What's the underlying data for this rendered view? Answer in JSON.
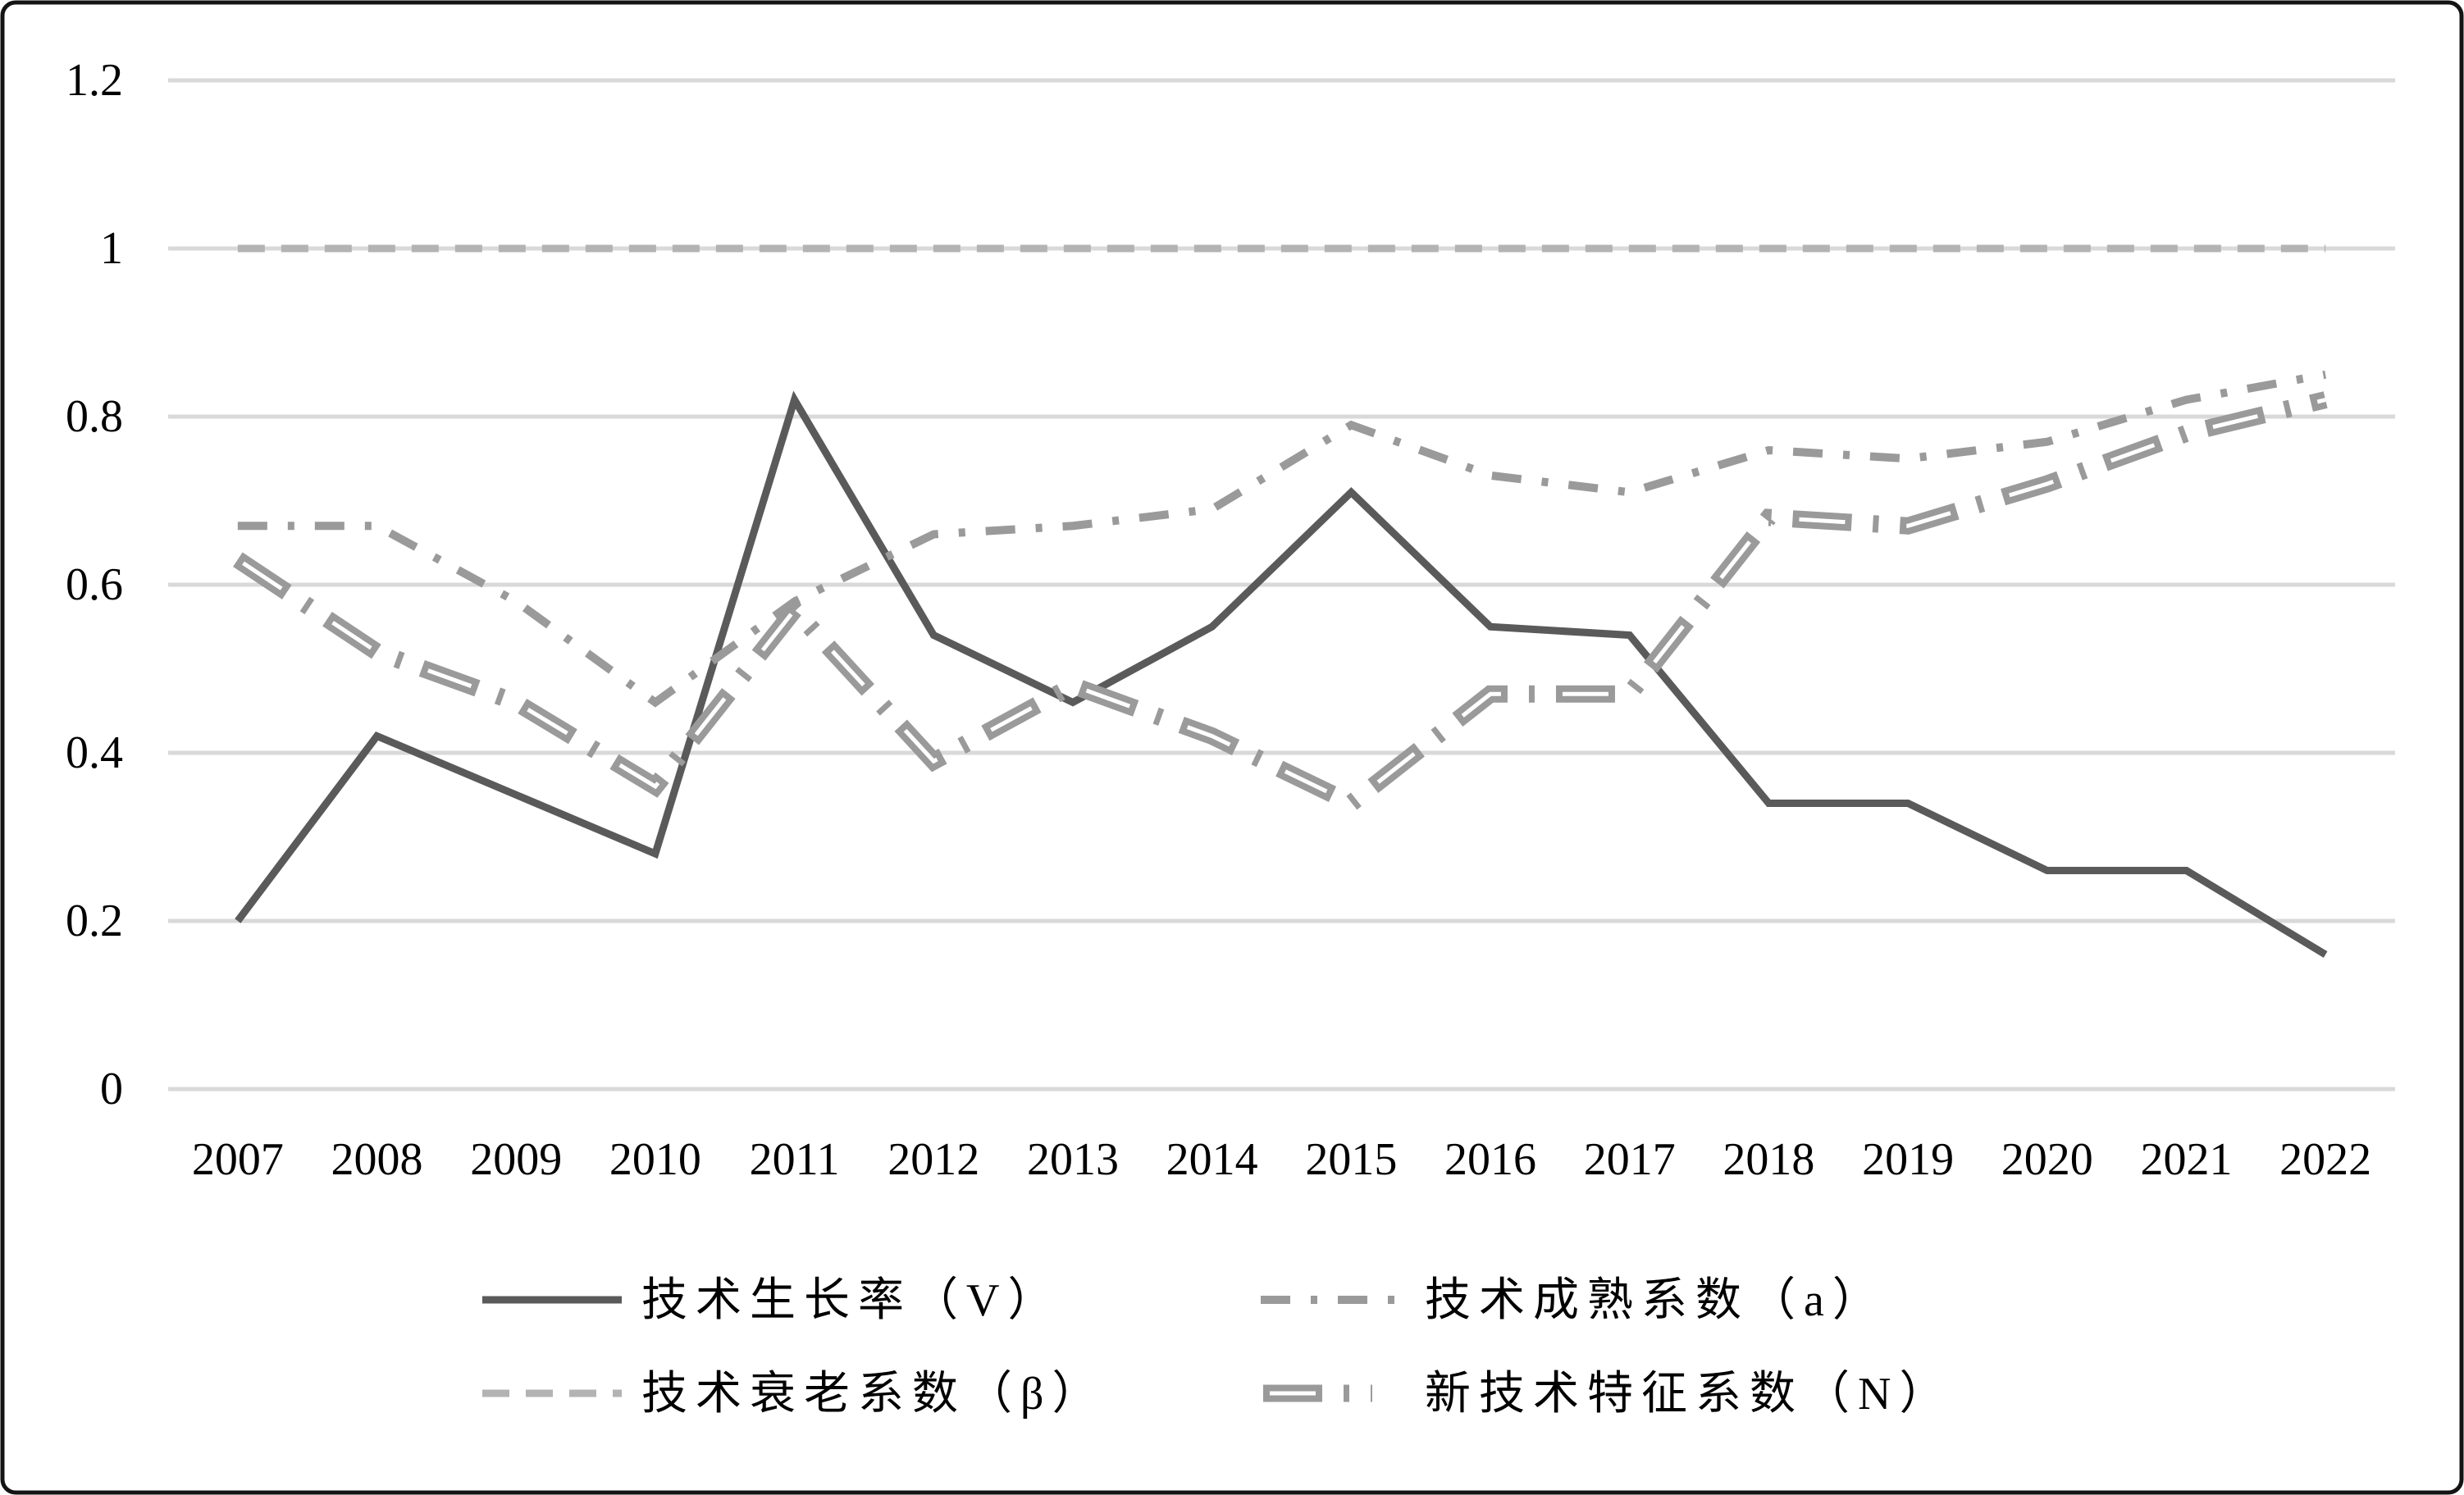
{
  "chart_data": {
    "type": "line",
    "title": "",
    "xlabel": "",
    "ylabel": "",
    "ylim": [
      0,
      1.2
    ],
    "grid": "horizontal",
    "legend_position": "bottom",
    "x_labels": [
      "2007",
      "2008",
      "2009",
      "2010",
      "2011",
      "2012",
      "2013",
      "2014",
      "2015",
      "2016",
      "2017",
      "2018",
      "2019",
      "2020",
      "2021",
      "2022"
    ],
    "y_ticks": {
      "values": [
        0,
        0.2,
        0.4,
        0.6,
        0.8,
        1,
        1.2
      ],
      "labels": [
        "0",
        "0.2",
        "0.4",
        "0.6",
        "0.8",
        "1",
        "1.2"
      ]
    },
    "series": [
      {
        "name": "技术生长率（V）",
        "style": "solid",
        "color": "#5a5a5a",
        "width": 9,
        "values": [
          0.2,
          0.42,
          0.35,
          0.28,
          0.82,
          0.54,
          0.46,
          0.55,
          0.71,
          0.55,
          0.54,
          0.34,
          0.34,
          0.26,
          0.26,
          0.16
        ]
      },
      {
        "name": "技术成熟系数（a）",
        "style": "dashdot",
        "color": "#9a9a9a",
        "width": 10,
        "values": [
          0.67,
          0.67,
          0.58,
          0.46,
          0.58,
          0.66,
          0.67,
          0.69,
          0.79,
          0.73,
          0.71,
          0.76,
          0.75,
          0.77,
          0.82,
          0.85
        ]
      },
      {
        "name": "技术衰老系数（β）",
        "style": "dashed",
        "color": "#b3b3b3",
        "width": 9,
        "values": [
          1,
          1,
          1,
          1,
          1,
          1,
          1,
          1,
          1,
          1,
          1,
          1,
          1,
          1,
          1,
          1
        ]
      },
      {
        "name": "新技术特征系数（N）",
        "style": "thick-dashdot",
        "color": "#9a9a9a",
        "highlight_color": "#ffffff",
        "width": 21,
        "values": [
          0.63,
          0.52,
          0.46,
          0.36,
          0.57,
          0.39,
          0.48,
          0.42,
          0.34,
          0.47,
          0.47,
          0.68,
          0.67,
          0.72,
          0.78,
          0.82
        ]
      }
    ],
    "colors": {
      "background": "#ffffff",
      "gridline": "#d9d9d9",
      "border": "#141414",
      "text": "#000000"
    }
  }
}
